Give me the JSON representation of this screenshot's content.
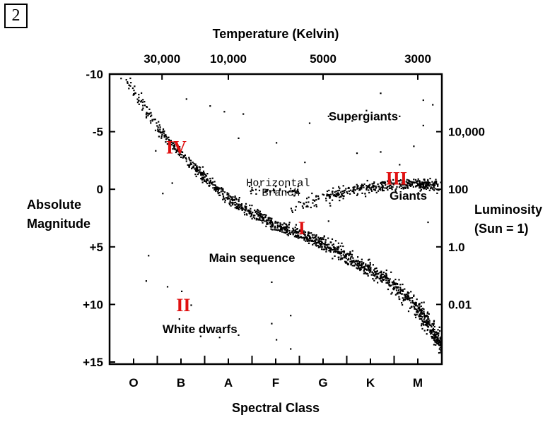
{
  "panel_number": "2",
  "chart_data": {
    "type": "scatter",
    "title": "",
    "top_axis": {
      "label": "Temperature  (Kelvin)",
      "ticks": [
        "30,000",
        "10,000",
        "5000",
        "3000"
      ],
      "tick_class_positions": [
        0.6,
        2.0,
        4.0,
        6.0
      ]
    },
    "bottom_axis": {
      "label": "Spectral Class",
      "categories": [
        "O",
        "B",
        "A",
        "F",
        "G",
        "K",
        "M"
      ]
    },
    "left_axis": {
      "label_lines": [
        "Absolute",
        "Magnitude"
      ],
      "tick_labels": [
        "-10",
        "-5",
        "0",
        "+5",
        "+10",
        "+15"
      ],
      "tick_values": [
        -10,
        -5,
        0,
        5,
        10,
        15
      ],
      "ylim": [
        -10,
        15
      ],
      "inverted": true
    },
    "right_axis": {
      "label_lines": [
        "Luminosity",
        "(Sun = 1)"
      ],
      "tick_labels": [
        "10,000",
        "100",
        "1.0",
        "0.01"
      ],
      "tick_magnitudes": [
        -5,
        0,
        5,
        10
      ]
    },
    "region_labels": [
      {
        "text": "Supergiants",
        "x": 4.85,
        "y": -6.0
      },
      {
        "text": "Giants",
        "x": 5.8,
        "y": 0.9
      },
      {
        "text": "Main sequence",
        "x": 2.5,
        "y": 6.3
      },
      {
        "text": "White dwarfs",
        "x": 1.4,
        "y": 12.5
      }
    ],
    "horizontal_branch_label": {
      "lines": [
        "Horizontal",
        "Branch"
      ],
      "x": 3.05,
      "y": -0.3
    },
    "roman_markers": [
      {
        "text": "I",
        "x": 3.55,
        "y": 3.9
      },
      {
        "text": "II",
        "x": 1.05,
        "y": 10.6
      },
      {
        "text": "III",
        "x": 5.55,
        "y": -0.4
      },
      {
        "text": "IV",
        "x": 0.9,
        "y": -3.1
      }
    ],
    "bands": {
      "main_sequence": [
        [
          -0.2,
          -10.0
        ],
        [
          0.5,
          -5.3
        ],
        [
          1.0,
          -3.0
        ],
        [
          1.5,
          -1.0
        ],
        [
          2.0,
          0.8
        ],
        [
          2.5,
          2.0
        ],
        [
          3.0,
          3.1
        ],
        [
          3.5,
          3.8
        ],
        [
          4.0,
          4.6
        ],
        [
          4.5,
          5.9
        ],
        [
          5.0,
          7.0
        ],
        [
          5.5,
          8.3
        ],
        [
          6.0,
          10.3
        ],
        [
          6.3,
          12.3
        ],
        [
          6.6,
          14.0
        ]
      ],
      "giant_branch": [
        [
          3.3,
          2.0
        ],
        [
          4.0,
          0.6
        ],
        [
          4.5,
          0.2
        ],
        [
          5.0,
          -0.2
        ],
        [
          5.5,
          -0.5
        ],
        [
          6.0,
          -0.5
        ],
        [
          6.4,
          -0.4
        ]
      ],
      "horizontal_branch": [
        [
          2.4,
          0.1
        ],
        [
          3.5,
          0.1
        ]
      ]
    },
    "sparse_points": [
      [
        1.1,
        -7.9
      ],
      [
        1.6,
        -7.3
      ],
      [
        1.9,
        -6.8
      ],
      [
        2.3,
        -6.6
      ],
      [
        3.7,
        -5.8
      ],
      [
        4.1,
        -6.4
      ],
      [
        4.6,
        -6.0
      ],
      [
        4.9,
        -6.9
      ],
      [
        5.2,
        -8.4
      ],
      [
        5.6,
        -6.4
      ],
      [
        6.1,
        -7.8
      ],
      [
        6.3,
        -7.4
      ],
      [
        6.1,
        -5.6
      ],
      [
        5.9,
        -3.8
      ],
      [
        3.0,
        -4.1
      ],
      [
        2.2,
        -4.5
      ],
      [
        0.45,
        -3.4
      ],
      [
        0.6,
        0.3
      ],
      [
        0.8,
        -0.6
      ],
      [
        3.6,
        -2.4
      ],
      [
        4.7,
        -3.2
      ],
      [
        5.6,
        -2.2
      ],
      [
        5.2,
        -3.3
      ],
      [
        6.2,
        2.8
      ],
      [
        6.5,
        2.4
      ],
      [
        0.3,
        5.7
      ],
      [
        0.25,
        7.9
      ],
      [
        0.7,
        8.4
      ],
      [
        1.0,
        8.8
      ],
      [
        2.9,
        8.0
      ],
      [
        3.3,
        10.9
      ],
      [
        2.9,
        11.6
      ],
      [
        1.4,
        12.7
      ],
      [
        1.8,
        12.8
      ],
      [
        2.2,
        12.6
      ],
      [
        3.0,
        13.0
      ],
      [
        3.3,
        13.8
      ],
      [
        0.95,
        11.2
      ],
      [
        1.2,
        10.0
      ],
      [
        4.1,
        2.7
      ],
      [
        3.8,
        0.9
      ],
      [
        2.6,
        1.7
      ]
    ]
  }
}
